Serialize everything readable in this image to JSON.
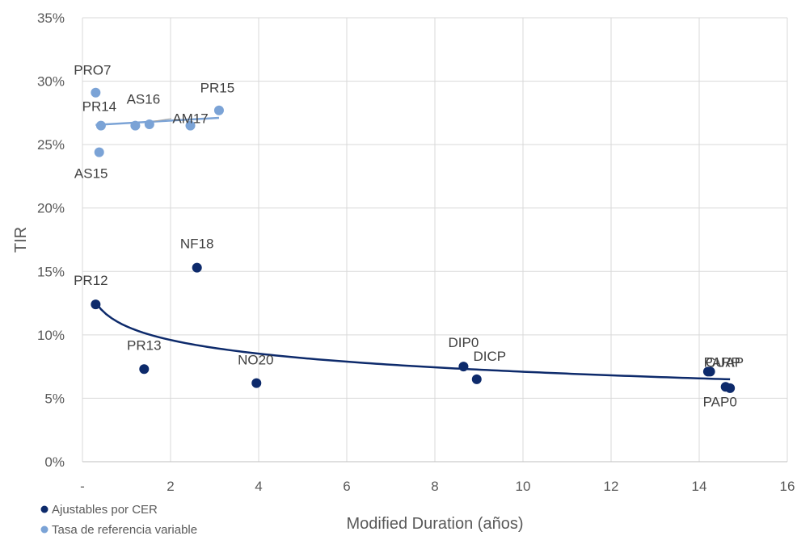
{
  "chart_data": {
    "type": "scatter",
    "xlabel": "Modified Duration (años)",
    "ylabel": "TIR",
    "xlim": [
      0,
      16
    ],
    "ylim": [
      0,
      35
    ],
    "x_ticks": [
      "-",
      "2",
      "4",
      "6",
      "8",
      "10",
      "12",
      "14",
      "16"
    ],
    "y_ticks": [
      "0%",
      "5%",
      "10%",
      "15%",
      "20%",
      "25%",
      "30%",
      "35%"
    ],
    "grid": "vertical and horizontal",
    "legend_position": "bottom-left",
    "series": [
      {
        "name": "Ajustables por CER",
        "color": "#0d2a6b",
        "trendline": "logarithmic",
        "points": [
          {
            "label": "PR12",
            "x": 0.3,
            "y": 12.4
          },
          {
            "label": "PR13",
            "x": 1.4,
            "y": 7.3
          },
          {
            "label": "NF18",
            "x": 2.6,
            "y": 15.3
          },
          {
            "label": "NO20",
            "x": 3.95,
            "y": 6.2
          },
          {
            "label": "DIP0",
            "x": 8.65,
            "y": 7.5
          },
          {
            "label": "DICP",
            "x": 8.95,
            "y": 6.5
          },
          {
            "label": "CUAP",
            "x": 14.2,
            "y": 7.1
          },
          {
            "label": "PARP",
            "x": 14.25,
            "y": 7.1
          },
          {
            "label": "PAP0",
            "x": 14.6,
            "y": 5.9
          },
          {
            "label": "",
            "x": 14.7,
            "y": 5.8
          }
        ]
      },
      {
        "name": "Tasa de referencia variable",
        "color": "#7ba3d6",
        "trendline": "linear",
        "points": [
          {
            "label": "PRO7",
            "x": 0.3,
            "y": 29.1
          },
          {
            "label": "PR14",
            "x": 0.42,
            "y": 26.5
          },
          {
            "label": "AS15",
            "x": 0.38,
            "y": 24.4
          },
          {
            "label": "AS16",
            "x": 1.2,
            "y": 26.5
          },
          {
            "label": "",
            "x": 1.52,
            "y": 26.6
          },
          {
            "label": "AM17",
            "x": 2.45,
            "y": 26.5
          },
          {
            "label": "PR15",
            "x": 3.1,
            "y": 27.7
          }
        ]
      }
    ]
  }
}
